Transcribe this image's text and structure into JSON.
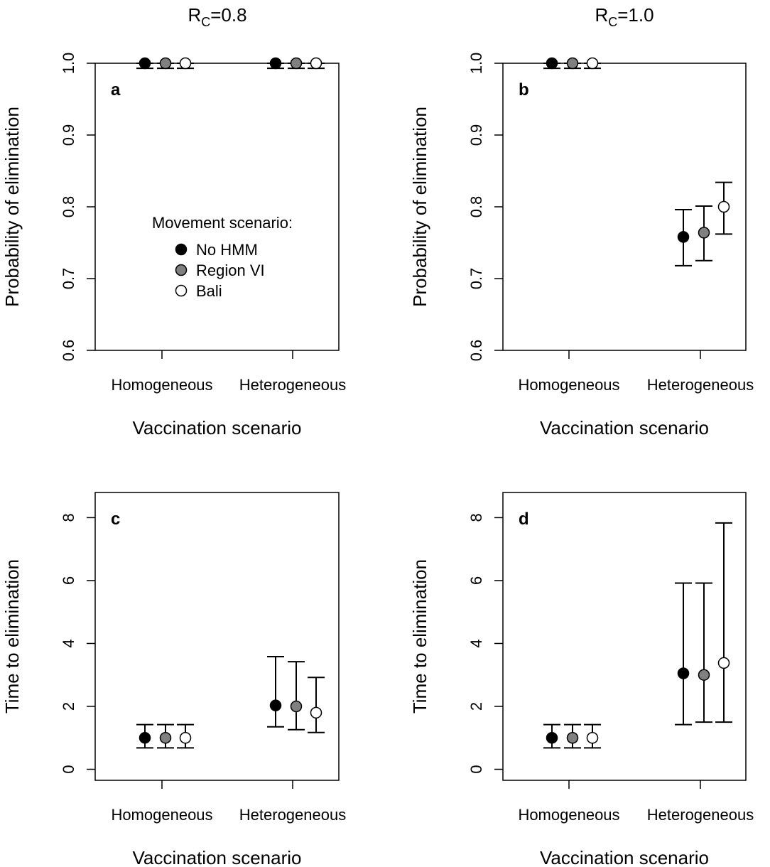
{
  "column_titles": [
    {
      "prefix": "R",
      "subscript": "C",
      "suffix": "=0.8"
    },
    {
      "prefix": "R",
      "subscript": "C",
      "suffix": "=1.0"
    }
  ],
  "legend": {
    "title": "Movement scenario:",
    "items": [
      {
        "label": "No HMM",
        "fill": "#000000"
      },
      {
        "label": "Region VI",
        "fill": "#808080"
      },
      {
        "label": "Bali",
        "fill": "#ffffff"
      }
    ],
    "panel": "a"
  },
  "chart_data": [
    {
      "type": "scatter",
      "panel": "a",
      "xlabel": "Vaccination scenario",
      "ylabel": "Probability of elimination",
      "categories": [
        "Homogeneous",
        "Heterogeneous"
      ],
      "ylim": [
        0.6,
        1.0
      ],
      "yticks": [
        0.6,
        0.7,
        0.8,
        0.9,
        1.0
      ],
      "ytick_labels": [
        "0.6",
        "0.7",
        "0.8",
        "0.9",
        "1.0"
      ],
      "grid": false,
      "series": [
        {
          "name": "No HMM",
          "fill": "#000000",
          "values": [
            1.0,
            1.0
          ],
          "lower": [
            0.993,
            0.993
          ],
          "upper": [
            1.0,
            1.0
          ]
        },
        {
          "name": "Region VI",
          "fill": "#808080",
          "values": [
            1.0,
            1.0
          ],
          "lower": [
            0.993,
            0.993
          ],
          "upper": [
            1.0,
            1.0
          ]
        },
        {
          "name": "Bali",
          "fill": "#ffffff",
          "values": [
            1.0,
            1.0
          ],
          "lower": [
            0.993,
            0.993
          ],
          "upper": [
            1.0,
            1.0
          ]
        }
      ]
    },
    {
      "type": "scatter",
      "panel": "b",
      "xlabel": "Vaccination scenario",
      "ylabel": "Probability of elimination",
      "categories": [
        "Homogeneous",
        "Heterogeneous"
      ],
      "ylim": [
        0.6,
        1.0
      ],
      "yticks": [
        0.6,
        0.7,
        0.8,
        0.9,
        1.0
      ],
      "ytick_labels": [
        "0.6",
        "0.7",
        "0.8",
        "0.9",
        "1.0"
      ],
      "grid": false,
      "series": [
        {
          "name": "No HMM",
          "fill": "#000000",
          "values": [
            1.0,
            0.758
          ],
          "lower": [
            0.993,
            0.718
          ],
          "upper": [
            1.0,
            0.796
          ]
        },
        {
          "name": "Region VI",
          "fill": "#808080",
          "values": [
            1.0,
            0.764
          ],
          "lower": [
            0.993,
            0.725
          ],
          "upper": [
            1.0,
            0.801
          ]
        },
        {
          "name": "Bali",
          "fill": "#ffffff",
          "values": [
            1.0,
            0.8
          ],
          "lower": [
            0.993,
            0.762
          ],
          "upper": [
            1.0,
            0.834
          ]
        }
      ]
    },
    {
      "type": "scatter",
      "panel": "c",
      "xlabel": "Vaccination scenario",
      "ylabel": "Time to elimination",
      "categories": [
        "Homogeneous",
        "Heterogeneous"
      ],
      "ylim": [
        -0.35,
        8.8
      ],
      "yticks": [
        0,
        2,
        4,
        6,
        8
      ],
      "ytick_labels": [
        "0",
        "2",
        "4",
        "6",
        "8"
      ],
      "grid": false,
      "series": [
        {
          "name": "No HMM",
          "fill": "#000000",
          "values": [
            1.0,
            2.03
          ],
          "lower": [
            0.68,
            1.35
          ],
          "upper": [
            1.42,
            3.58
          ]
        },
        {
          "name": "Region VI",
          "fill": "#808080",
          "values": [
            1.0,
            2.0
          ],
          "lower": [
            0.68,
            1.26
          ],
          "upper": [
            1.42,
            3.42
          ]
        },
        {
          "name": "Bali",
          "fill": "#ffffff",
          "values": [
            1.0,
            1.8
          ],
          "lower": [
            0.68,
            1.17
          ],
          "upper": [
            1.42,
            2.92
          ]
        }
      ]
    },
    {
      "type": "scatter",
      "panel": "d",
      "xlabel": "Vaccination scenario",
      "ylabel": "Time to elimination",
      "categories": [
        "Homogeneous",
        "Heterogeneous"
      ],
      "ylim": [
        -0.35,
        8.8
      ],
      "yticks": [
        0,
        2,
        4,
        6,
        8
      ],
      "ytick_labels": [
        "0",
        "2",
        "4",
        "6",
        "8"
      ],
      "grid": false,
      "series": [
        {
          "name": "No HMM",
          "fill": "#000000",
          "values": [
            1.0,
            3.05
          ],
          "lower": [
            0.68,
            1.42
          ],
          "upper": [
            1.42,
            5.92
          ]
        },
        {
          "name": "Region VI",
          "fill": "#808080",
          "values": [
            1.0,
            3.0
          ],
          "lower": [
            0.68,
            1.5
          ],
          "upper": [
            1.42,
            5.92
          ]
        },
        {
          "name": "Bali",
          "fill": "#ffffff",
          "values": [
            1.0,
            3.38
          ],
          "lower": [
            0.68,
            1.5
          ],
          "upper": [
            1.42,
            7.83
          ]
        }
      ]
    }
  ]
}
